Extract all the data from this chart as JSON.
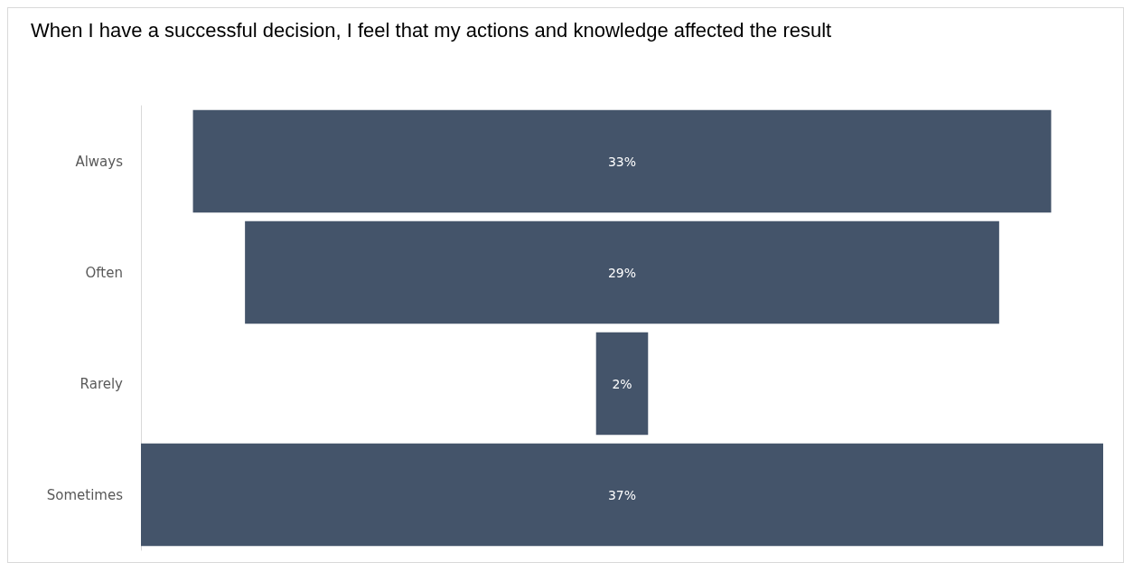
{
  "chart_data": {
    "type": "other",
    "title": "When I have a successful decision, I feel that my actions and knowledge affected the result",
    "categories": [
      "Always",
      "Often",
      "Rarely",
      "Sometimes"
    ],
    "values": [
      33,
      29,
      2,
      37
    ],
    "value_labels": [
      "33%",
      "29%",
      "2%",
      "37%"
    ],
    "color": "#44546a"
  }
}
